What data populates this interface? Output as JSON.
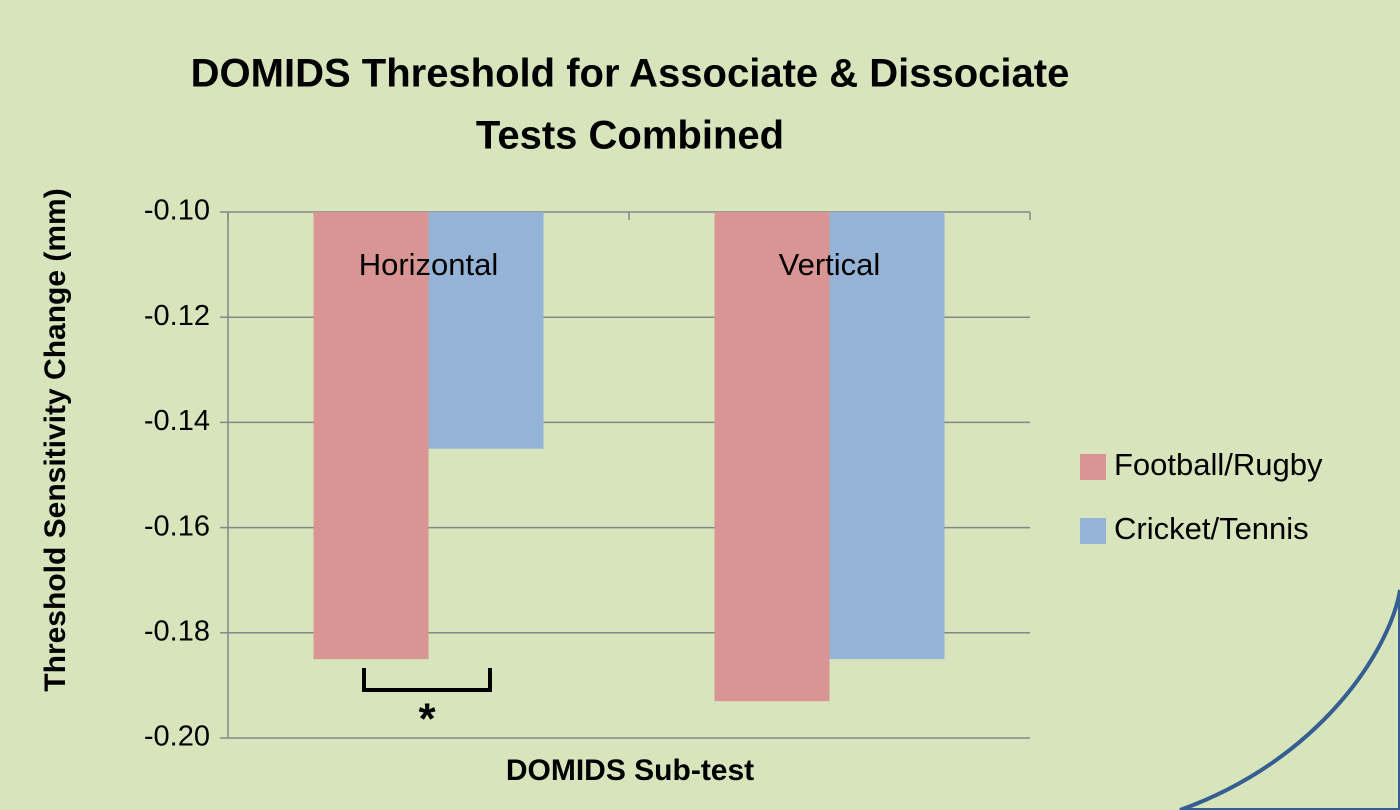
{
  "chart_data": {
    "type": "bar",
    "title": [
      "DOMIDS Threshold for Associate & Dissociate",
      "Tests Combined"
    ],
    "x_label": "DOMIDS Sub-test",
    "y_label": "Threshold Sensitivity Change (mm)",
    "categories": [
      "Horizontal",
      "Vertical"
    ],
    "series": [
      {
        "name": "Football/Rugby",
        "color": "#d99594",
        "values": [
          -0.185,
          -0.193
        ]
      },
      {
        "name": "Cricket/Tennis",
        "color": "#95b3d7",
        "values": [
          -0.145,
          -0.185
        ]
      }
    ],
    "ylim": [
      -0.2,
      -0.1
    ],
    "yticks": [
      {
        "value": -0.1,
        "label": "-0.10"
      },
      {
        "value": -0.12,
        "label": "-0.12"
      },
      {
        "value": -0.14,
        "label": "-0.14"
      },
      {
        "value": -0.16,
        "label": "-0.16"
      },
      {
        "value": -0.18,
        "label": "-0.18"
      },
      {
        "value": -0.2,
        "label": "-0.20"
      }
    ],
    "grid": true,
    "legend": "right",
    "annotations": [
      "*"
    ]
  }
}
